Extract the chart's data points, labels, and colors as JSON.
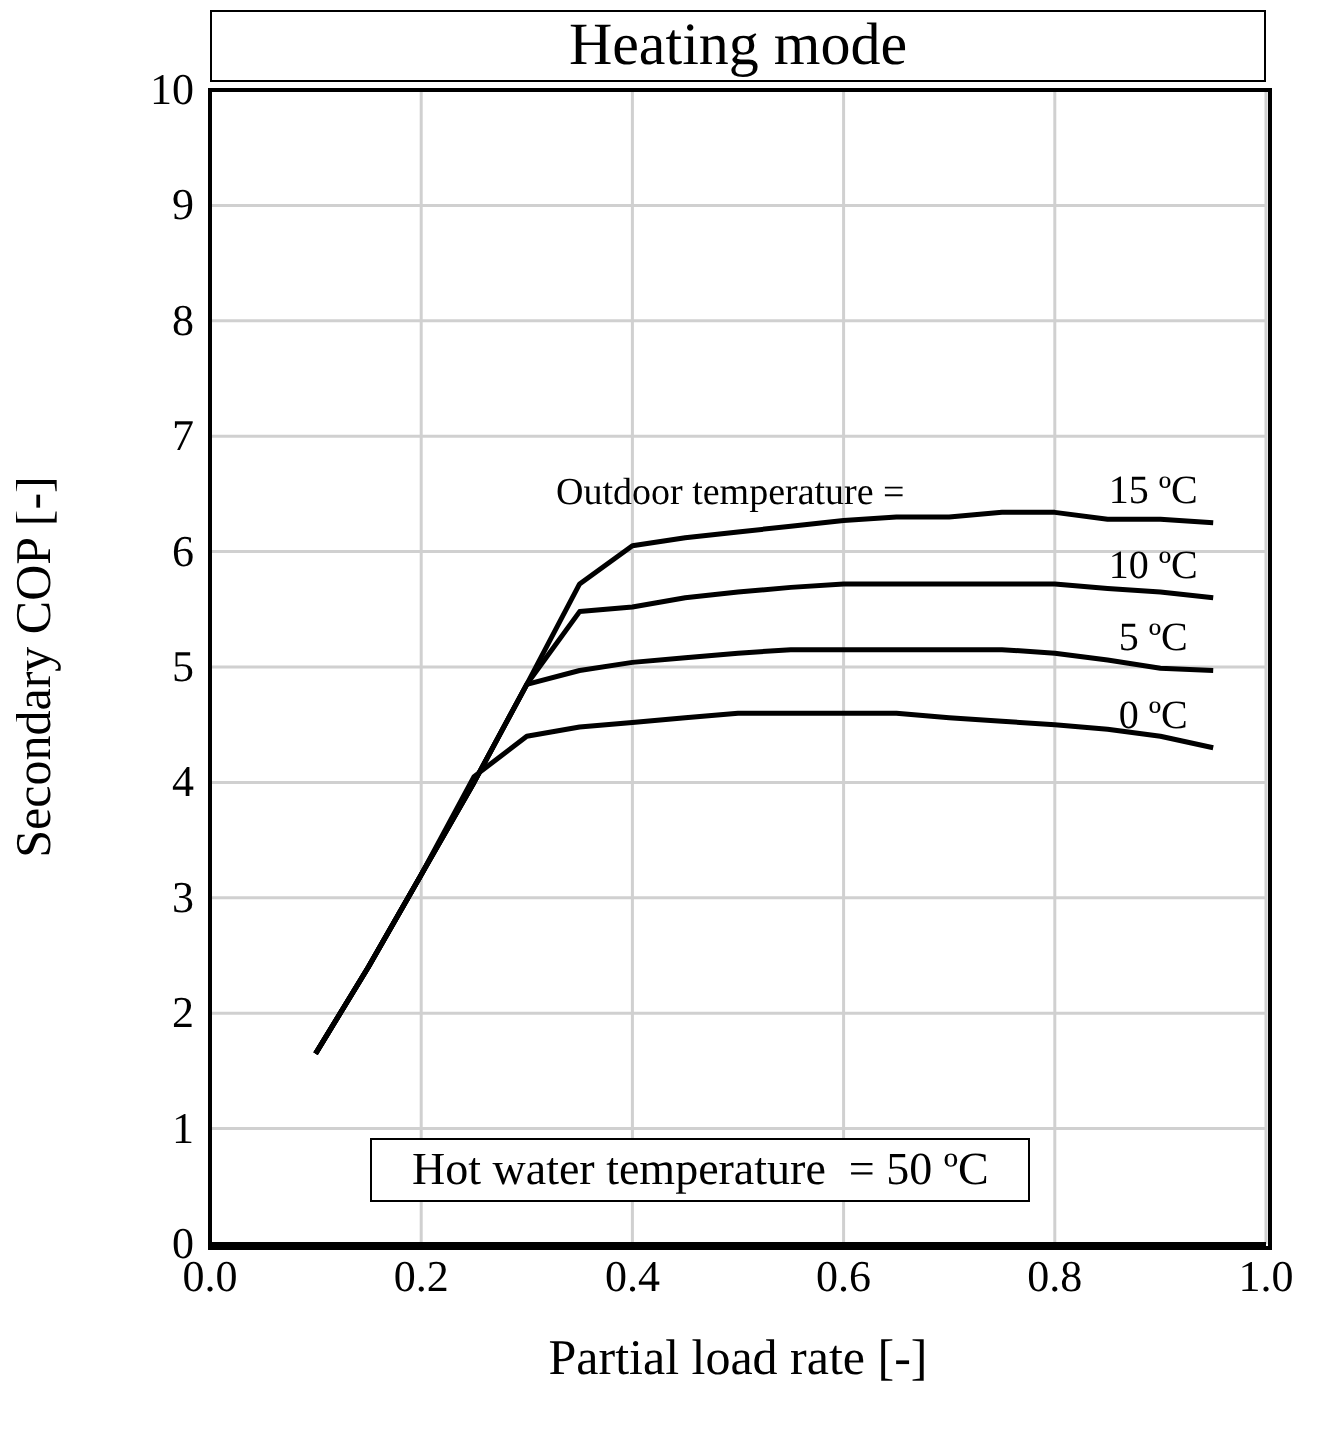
{
  "chart_data": {
    "type": "line",
    "title": "Heating mode",
    "xlabel": "Partial load rate [-]",
    "ylabel": "Secondary COP [-]",
    "x": [
      0.1,
      0.15,
      0.2,
      0.25,
      0.3,
      0.35,
      0.4,
      0.45,
      0.5,
      0.55,
      0.6,
      0.65,
      0.7,
      0.75,
      0.8,
      0.85,
      0.9,
      0.95
    ],
    "series": [
      {
        "name": "15 ºC",
        "color": "#000000",
        "values": [
          1.65,
          2.4,
          3.2,
          4.0,
          4.85,
          5.72,
          6.05,
          6.12,
          6.17,
          6.22,
          6.27,
          6.3,
          6.3,
          6.34,
          6.34,
          6.28,
          6.28,
          6.25
        ]
      },
      {
        "name": "10 ºC",
        "color": "#000000",
        "values": [
          1.65,
          2.4,
          3.2,
          4.0,
          4.85,
          5.48,
          5.52,
          5.6,
          5.65,
          5.69,
          5.72,
          5.72,
          5.72,
          5.72,
          5.72,
          5.68,
          5.65,
          5.6
        ]
      },
      {
        "name": "5 ºC",
        "color": "#000000",
        "values": [
          1.65,
          2.4,
          3.2,
          4.0,
          4.85,
          4.97,
          5.04,
          5.08,
          5.12,
          5.15,
          5.15,
          5.15,
          5.15,
          5.15,
          5.12,
          5.06,
          4.99,
          4.97
        ]
      },
      {
        "name": "0 ºC",
        "color": "#000000",
        "values": [
          1.65,
          2.4,
          3.2,
          4.05,
          4.4,
          4.48,
          4.52,
          4.56,
          4.6,
          4.6,
          4.6,
          4.6,
          4.56,
          4.53,
          4.5,
          4.46,
          4.4,
          4.3
        ]
      }
    ],
    "annotations": [
      "Outdoor temperature =",
      "Hot water temperature  = 50 ºC"
    ],
    "xlim": [
      0,
      1
    ],
    "xticks": [
      {
        "value": 0,
        "label": "0.0"
      },
      0.2,
      0.4,
      0.6,
      0.8,
      {
        "value": 1,
        "label": "1.0"
      }
    ],
    "ylim": [
      0,
      10
    ],
    "yticks": [
      0,
      1,
      2,
      3,
      4,
      5,
      6,
      7,
      8,
      9,
      10
    ],
    "grid": true,
    "marker": "none",
    "line_style": "solid"
  }
}
